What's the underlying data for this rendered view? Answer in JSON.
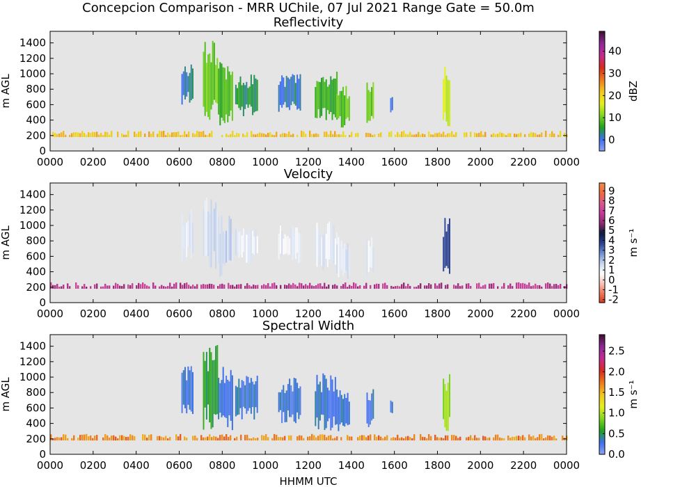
{
  "figure": {
    "suptitle": "Concepcion Comparison - MRR UChile, 07 Jul 2021 Range Gate = 50.0m",
    "xlabel": "HHMM UTC"
  },
  "chart_data": [
    {
      "type": "heatmap",
      "title": "Reflectivity",
      "ylabel": "m AGL",
      "xlabel": "HHMM UTC",
      "x_ticklabels": [
        "0000",
        "0200",
        "0400",
        "0600",
        "0800",
        "1000",
        "1200",
        "1400",
        "1600",
        "1800",
        "2000",
        "2200",
        "0000"
      ],
      "xlim_hours": [
        0,
        24
      ],
      "y_ticks": [
        0,
        200,
        400,
        600,
        800,
        1000,
        1200,
        1400
      ],
      "ylim": [
        0,
        1550
      ],
      "grid": false,
      "colorbar": {
        "label": "dBZ",
        "ticks": [
          0,
          10,
          20,
          30,
          40
        ],
        "range": [
          -5,
          49
        ],
        "colors": [
          "#8fa7f0",
          "#3f6ff0",
          "#1fa01f",
          "#7fd71f",
          "#e6f01f",
          "#f0c81f",
          "#ee7a1f",
          "#d82a1f",
          "#c52a8f",
          "#8f2a9a",
          "#401030"
        ]
      },
      "features": [
        {
          "desc": "surface clutter band",
          "x_range": [
            0.0,
            24.0
          ],
          "y_range": [
            180,
            300
          ],
          "value": 22
        },
        {
          "desc": "echo",
          "x_range": [
            6.1,
            6.6
          ],
          "y_range": [
            600,
            1150
          ],
          "value": 2
        },
        {
          "desc": "echo",
          "x_range": [
            7.1,
            7.8
          ],
          "y_range": [
            400,
            1450
          ],
          "value": 10
        },
        {
          "desc": "echo",
          "x_range": [
            7.8,
            8.5
          ],
          "y_range": [
            300,
            1150
          ],
          "value": 8
        },
        {
          "desc": "echo",
          "x_range": [
            8.6,
            9.6
          ],
          "y_range": [
            450,
            1000
          ],
          "value": 5
        },
        {
          "desc": "echo",
          "x_range": [
            10.6,
            11.6
          ],
          "y_range": [
            500,
            1000
          ],
          "value": 2
        },
        {
          "desc": "echo",
          "x_range": [
            12.3,
            13.3
          ],
          "y_range": [
            400,
            1050
          ],
          "value": 7
        },
        {
          "desc": "echo",
          "x_range": [
            13.3,
            13.9
          ],
          "y_range": [
            300,
            850
          ],
          "value": 9
        },
        {
          "desc": "echo",
          "x_range": [
            14.7,
            15.0
          ],
          "y_range": [
            300,
            900
          ],
          "value": 10
        },
        {
          "desc": "echo",
          "x_range": [
            15.8,
            15.9
          ],
          "y_range": [
            500,
            700
          ],
          "value": 0
        },
        {
          "desc": "echo",
          "x_range": [
            18.25,
            18.55
          ],
          "y_range": [
            300,
            1100
          ],
          "value": 15
        }
      ]
    },
    {
      "type": "heatmap",
      "title": "Velocity",
      "ylabel": "m AGL",
      "xlabel": "HHMM UTC",
      "x_ticklabels": [
        "0000",
        "0200",
        "0400",
        "0600",
        "0800",
        "1000",
        "1200",
        "1400",
        "1600",
        "1800",
        "2000",
        "2200",
        "0000"
      ],
      "xlim_hours": [
        0,
        24
      ],
      "y_ticks": [
        0,
        200,
        400,
        600,
        800,
        1000,
        1200,
        1400
      ],
      "ylim": [
        0,
        1550
      ],
      "grid": false,
      "colorbar": {
        "label": "m s⁻¹",
        "ticks": [
          -2,
          -1,
          0,
          1,
          2,
          3,
          4,
          5,
          6,
          7,
          8,
          9
        ],
        "range": [
          -2.3,
          9.8
        ],
        "colors": [
          "#d83a1f",
          "#ee7a5a",
          "#f7c8c0",
          "#ffffff",
          "#c6d4ee",
          "#6f8fd0",
          "#2a3f8f",
          "#101a40",
          "#8f2a6f",
          "#c53a9a",
          "#d85a8f",
          "#ee6a3f",
          "#f08a4a"
        ]
      },
      "features": [
        {
          "desc": "surface clutter band",
          "x_range": [
            0.0,
            24.0
          ],
          "y_range": [
            180,
            300
          ],
          "value": 6.5
        },
        {
          "desc": "echo",
          "x_range": [
            6.1,
            6.6
          ],
          "y_range": [
            500,
            1250
          ],
          "value": 1.2
        },
        {
          "desc": "echo",
          "x_range": [
            7.1,
            7.8
          ],
          "y_range": [
            400,
            1450
          ],
          "value": 1.4
        },
        {
          "desc": "echo",
          "x_range": [
            7.8,
            8.5
          ],
          "y_range": [
            300,
            1150
          ],
          "value": 1.6
        },
        {
          "desc": "echo",
          "x_range": [
            8.6,
            9.6
          ],
          "y_range": [
            500,
            1050
          ],
          "value": 1.2
        },
        {
          "desc": "echo",
          "x_range": [
            10.6,
            11.6
          ],
          "y_range": [
            500,
            1000
          ],
          "value": 1.0
        },
        {
          "desc": "echo",
          "x_range": [
            12.3,
            13.3
          ],
          "y_range": [
            400,
            1050
          ],
          "value": 1.1
        },
        {
          "desc": "echo",
          "x_range": [
            13.3,
            13.9
          ],
          "y_range": [
            300,
            850
          ],
          "value": 1.3
        },
        {
          "desc": "echo",
          "x_range": [
            14.7,
            15.0
          ],
          "y_range": [
            300,
            900
          ],
          "value": 1.0
        },
        {
          "desc": "echo",
          "x_range": [
            18.25,
            18.55
          ],
          "y_range": [
            300,
            1100
          ],
          "value": 3.5
        }
      ]
    },
    {
      "type": "heatmap",
      "title": "Spectral Width",
      "ylabel": "m AGL",
      "xlabel": "HHMM UTC",
      "x_ticklabels": [
        "0000",
        "0200",
        "0400",
        "0600",
        "0800",
        "1000",
        "1200",
        "1400",
        "1600",
        "1800",
        "2000",
        "2200",
        "0000"
      ],
      "xlim_hours": [
        0,
        24
      ],
      "y_ticks": [
        0,
        200,
        400,
        600,
        800,
        1000,
        1200,
        1400
      ],
      "ylim": [
        0,
        1550
      ],
      "grid": false,
      "colorbar": {
        "label": "m s⁻¹",
        "ticks": [
          "0.0",
          "0.5",
          "1.0",
          "1.5",
          "2.0",
          "2.5"
        ],
        "range": [
          0.0,
          2.9
        ],
        "colors": [
          "#8fa7f0",
          "#3f6ff0",
          "#1fa01f",
          "#7fd71f",
          "#e6f01f",
          "#f0c81f",
          "#ee7a1f",
          "#d82a1f",
          "#c52a8f",
          "#8f2a9a",
          "#401030"
        ]
      },
      "features": [
        {
          "desc": "surface clutter band",
          "x_range": [
            0.0,
            24.0
          ],
          "y_range": [
            180,
            300
          ],
          "value": 1.7
        },
        {
          "desc": "echo",
          "x_range": [
            6.1,
            6.6
          ],
          "y_range": [
            500,
            1150
          ],
          "value": 0.3
        },
        {
          "desc": "echo",
          "x_range": [
            7.1,
            7.8
          ],
          "y_range": [
            300,
            1450
          ],
          "value": 0.6
        },
        {
          "desc": "echo",
          "x_range": [
            7.8,
            8.5
          ],
          "y_range": [
            300,
            1150
          ],
          "value": 0.3
        },
        {
          "desc": "echo",
          "x_range": [
            8.6,
            9.6
          ],
          "y_range": [
            450,
            1050
          ],
          "value": 0.3
        },
        {
          "desc": "echo",
          "x_range": [
            10.6,
            11.6
          ],
          "y_range": [
            400,
            1000
          ],
          "value": 0.3
        },
        {
          "desc": "echo",
          "x_range": [
            12.3,
            13.3
          ],
          "y_range": [
            300,
            1050
          ],
          "value": 0.3
        },
        {
          "desc": "echo",
          "x_range": [
            13.3,
            13.9
          ],
          "y_range": [
            300,
            850
          ],
          "value": 0.3
        },
        {
          "desc": "echo",
          "x_range": [
            14.7,
            15.0
          ],
          "y_range": [
            300,
            900
          ],
          "value": 0.3
        },
        {
          "desc": "echo",
          "x_range": [
            15.8,
            15.9
          ],
          "y_range": [
            500,
            700
          ],
          "value": 0.3
        },
        {
          "desc": "echo",
          "x_range": [
            18.25,
            18.55
          ],
          "y_range": [
            300,
            1100
          ],
          "value": 0.9
        }
      ]
    }
  ]
}
